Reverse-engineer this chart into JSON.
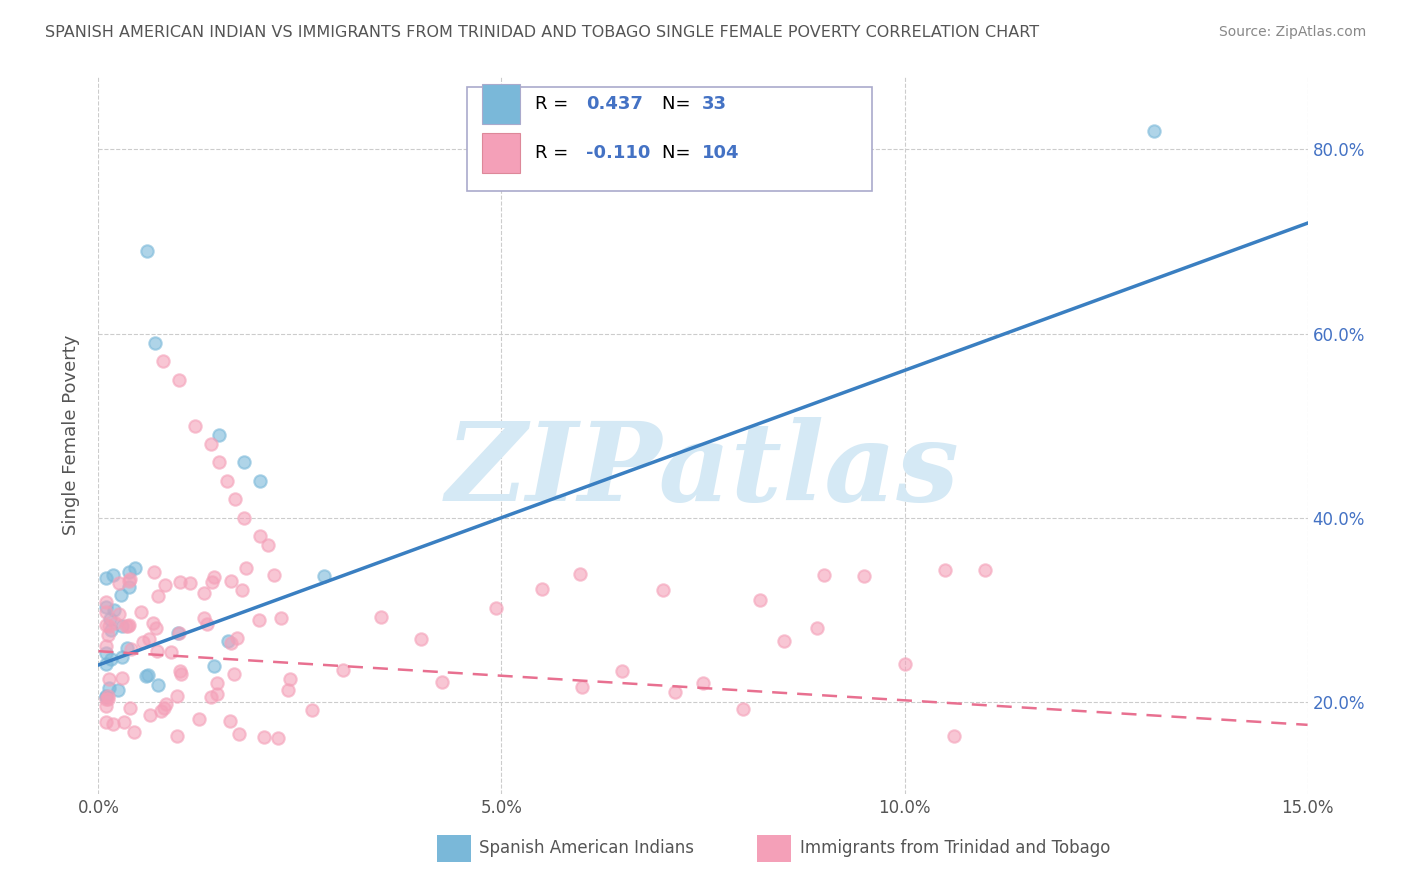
{
  "title": "SPANISH AMERICAN INDIAN VS IMMIGRANTS FROM TRINIDAD AND TOBAGO SINGLE FEMALE POVERTY CORRELATION CHART",
  "source": "Source: ZipAtlas.com",
  "ylabel": "Single Female Poverty",
  "y_ticks": [
    0.2,
    0.4,
    0.6,
    0.8
  ],
  "y_tick_labels": [
    "20.0%",
    "40.0%",
    "60.0%",
    "80.0%"
  ],
  "x_min": 0.0,
  "x_max": 0.15,
  "y_min": 0.1,
  "y_max": 0.88,
  "blue_R": 0.437,
  "blue_N": 33,
  "pink_R": -0.11,
  "pink_N": 104,
  "blue_color": "#7ab8d9",
  "pink_color": "#f4a0b8",
  "blue_line_color": "#3a7fc1",
  "pink_line_color": "#e87090",
  "watermark_text": "ZIPatlas",
  "watermark_color": "#d5e9f5",
  "legend_label_blue": "Spanish American Indians",
  "legend_label_pink": "Immigrants from Trinidad and Tobago",
  "blue_label_color": "#3a7fc1",
  "pink_label_color": "#e87090",
  "grid_color": "#cccccc",
  "tick_color": "#555555",
  "right_tick_color": "#4472c4"
}
